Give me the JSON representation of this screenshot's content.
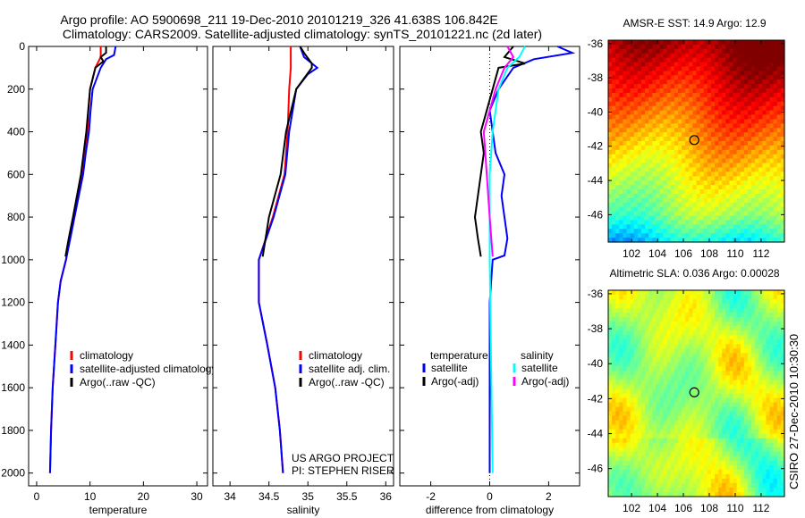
{
  "title": {
    "line1": "Argo profile: AO 5900698_211 19-Dec-2010 20101219_326 41.638S 106.842E",
    "line2": "Climatology: CARS2009. Satellite-adjusted climatology: synTS_20101221.nc (2d later)"
  },
  "footer": {
    "project": "US ARGO PROJECT",
    "pi": "PI: STEPHEN RISER",
    "stamp": "CSIRO 27-Dec-2010 10:30:30"
  },
  "chart_data": [
    {
      "type": "line",
      "name": "temperature-profile",
      "xlabel": "temperature",
      "ylabel": "",
      "xlim": [
        -1.5,
        32
      ],
      "ylim": [
        2060,
        0
      ],
      "xticks": [
        0,
        10,
        20,
        30
      ],
      "yticks": [
        0,
        200,
        400,
        600,
        800,
        1000,
        1200,
        1400,
        1600,
        1800,
        2000
      ],
      "legend_position": "bottom-left",
      "series": [
        {
          "name": "climatology",
          "color": "#ff0000",
          "depth": [
            0,
            50,
            100,
            200,
            300,
            400,
            500,
            600,
            700,
            800,
            900,
            1000,
            1100,
            1200,
            1400,
            1600,
            1800,
            2000
          ],
          "values": [
            12,
            12,
            11,
            10,
            9.7,
            9.5,
            9.0,
            8.5,
            7.8,
            7.0,
            6.2,
            5.5,
            4.5,
            4.0,
            3.5,
            3.0,
            2.7,
            2.5
          ]
        },
        {
          "name": "satellite-adjusted climatology",
          "color": "#0000ff",
          "depth": [
            0,
            40,
            60,
            100,
            200,
            300,
            400,
            500,
            600,
            700,
            800,
            900,
            1000,
            1100,
            1200,
            1400,
            1600,
            1800,
            2000
          ],
          "values": [
            14.8,
            14.5,
            13,
            12,
            10.5,
            10.1,
            9.8,
            9.2,
            8.7,
            7.9,
            7.1,
            6.3,
            5.5,
            4.5,
            4.0,
            3.5,
            3.0,
            2.7,
            2.5
          ]
        },
        {
          "name": "Argo(..raw -QC)",
          "color": "#000000",
          "depth": [
            0,
            30,
            50,
            70,
            100,
            200,
            400,
            600,
            800,
            900,
            985
          ],
          "values": [
            13,
            13,
            12,
            12.5,
            11,
            10,
            9.3,
            8.3,
            6.8,
            6.0,
            5.4
          ]
        }
      ]
    },
    {
      "type": "line",
      "name": "salinity-profile",
      "xlabel": "salinity",
      "xlim": [
        33.78,
        36.1
      ],
      "ylim": [
        2060,
        0
      ],
      "xticks": [
        34,
        34.5,
        35,
        35.5,
        36
      ],
      "legend_position": "bottom-right",
      "series": [
        {
          "name": "climatology",
          "color": "#ff0000",
          "depth": [
            0,
            100,
            200,
            400,
            600,
            800,
            1000,
            1200,
            1400,
            1600,
            1800,
            2000
          ],
          "values": [
            34.78,
            34.78,
            34.76,
            34.74,
            34.7,
            34.55,
            34.37,
            34.37,
            34.48,
            34.58,
            34.64,
            34.68
          ]
        },
        {
          "name": "satellite adj. clim.",
          "color": "#0000ff",
          "depth": [
            0,
            50,
            100,
            130,
            200,
            400,
            600,
            800,
            1000,
            1200,
            1400,
            1600,
            1800,
            2000
          ],
          "values": [
            34.9,
            34.95,
            35.12,
            35.0,
            34.85,
            34.76,
            34.71,
            34.56,
            34.37,
            34.37,
            34.48,
            34.58,
            34.64,
            34.68
          ]
        },
        {
          "name": "Argo(..raw -QC)",
          "color": "#000000",
          "depth": [
            0,
            30,
            80,
            100,
            200,
            400,
            600,
            800,
            985
          ],
          "values": [
            34.9,
            34.95,
            35.05,
            35.05,
            34.85,
            34.72,
            34.65,
            34.5,
            34.42
          ]
        }
      ]
    },
    {
      "type": "line",
      "name": "difference-profile",
      "xlabel": "difference from climatology",
      "xlim": [
        -3.05,
        3.05
      ],
      "ylim": [
        2060,
        0
      ],
      "xticks": [
        -2,
        0,
        2
      ],
      "legend_position": "bottom",
      "legend_groups": [
        "temperature",
        "salinity"
      ],
      "series": [
        {
          "name": "satellite",
          "group": "temperature",
          "color": "#0000ff",
          "depth": [
            0,
            30,
            60,
            100,
            200,
            300,
            400,
            500,
            600,
            700,
            800,
            900,
            980,
            1000,
            1200,
            2000
          ],
          "values": [
            2.3,
            2.8,
            1.5,
            0.8,
            0.3,
            0.0,
            0.1,
            0.2,
            0.5,
            0.4,
            0.5,
            0.6,
            0.5,
            0.1,
            0.0,
            0.0
          ]
        },
        {
          "name": "Argo(-adj)",
          "group": "temperature",
          "color": "#000000",
          "depth": [
            0,
            50,
            80,
            100,
            200,
            300,
            400,
            500,
            600,
            700,
            800,
            900,
            985
          ],
          "values": [
            0.8,
            0.5,
            1.2,
            0.3,
            0.1,
            -0.1,
            -0.3,
            -0.2,
            -0.3,
            -0.4,
            -0.5,
            -0.4,
            -0.3
          ]
        },
        {
          "name": "satellite",
          "group": "salinity",
          "color": "#00ffff",
          "depth": [
            0,
            50,
            100,
            200,
            400,
            600,
            1000,
            1500,
            2000
          ],
          "values": [
            1.2,
            1.0,
            0.6,
            0.3,
            0.1,
            0.0,
            0.0,
            0.05,
            0.1
          ]
        },
        {
          "name": "Argo(-adj)",
          "group": "salinity",
          "color": "#ff00ff",
          "depth": [
            0,
            50,
            100,
            200,
            400,
            600,
            800,
            985
          ],
          "values": [
            0.6,
            0.8,
            0.5,
            0.2,
            -0.2,
            -0.1,
            0.0,
            0.1
          ]
        }
      ]
    },
    {
      "type": "heatmap",
      "name": "sst-map",
      "title": "AMSR-E SST: 14.9 Argo: 12.9",
      "xlim": [
        100.2,
        113.8
      ],
      "ylim": [
        -47.6,
        -35.8
      ],
      "xticks": [
        102,
        104,
        106,
        108,
        110,
        112
      ],
      "yticks": [
        -36,
        -38,
        -40,
        -42,
        -44,
        -46
      ],
      "marker": {
        "lon": 106.842,
        "lat": -41.638
      }
    },
    {
      "type": "heatmap",
      "name": "sla-map",
      "title": "Altimetric SLA: 0.036 Argo: 0.00028",
      "xlim": [
        100.2,
        113.8
      ],
      "ylim": [
        -47.6,
        -35.8
      ],
      "xticks": [
        102,
        104,
        106,
        108,
        110,
        112
      ],
      "yticks": [
        -36,
        -38,
        -40,
        -42,
        -44,
        -46
      ],
      "marker": {
        "lon": 106.842,
        "lat": -41.638
      }
    }
  ]
}
